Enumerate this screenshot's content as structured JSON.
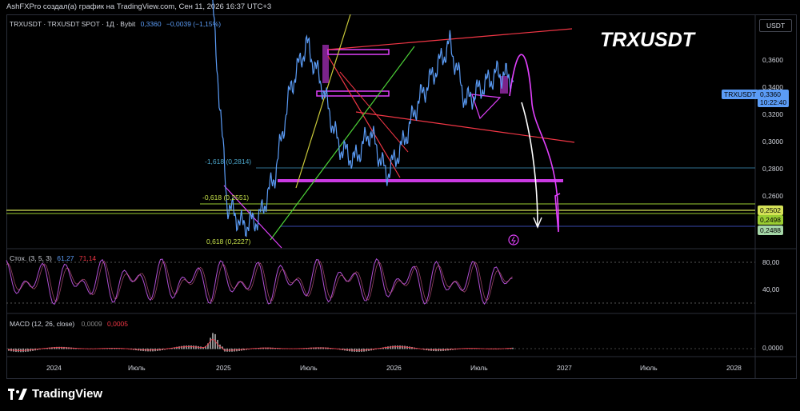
{
  "header": {
    "attribution": "AshFXPro создал(а) график на TradingView.com, Сен 11, 2026 16:37 UTC+3"
  },
  "legend": {
    "symbol": "TRXUSDT · TRXUSDT SPOT · 1Д · Bybit",
    "price": "0,3360",
    "change": "−0,0039 (−1,15%)"
  },
  "watermark_title": "TRXUSDT",
  "currency_button": "USDT",
  "current_price_tag": {
    "symbol": "TRXUSDT",
    "price": "0,3360",
    "countdown": "10:22:40",
    "color": "#5b9cf6"
  },
  "price_axis_labels": [
    "0,3600",
    "0,3400",
    "0,3200",
    "0,3000",
    "0,2800",
    "0,2600"
  ],
  "level_tags": [
    "0,2502",
    "0,2498",
    "0,2488"
  ],
  "fib_labels": [
    "-1,618 (0,2814)",
    "-0,618 (0,2551)",
    "0,618 (0,2227)"
  ],
  "stoch": {
    "title": "Стох. (3, 5, 3)",
    "k": "61,27",
    "d": "71,14",
    "axis_labels": [
      "80,00",
      "40,00"
    ]
  },
  "macd": {
    "title": "MACD (12, 26, close)",
    "macd": "0,0009",
    "signal": "0,0005",
    "axis_label": "0,0000"
  },
  "time_axis_labels": [
    "2024",
    "Июль",
    "2025",
    "Июль",
    "2026",
    "Июль",
    "2027",
    "Июль",
    "2028"
  ],
  "brand": "TradingView",
  "colors": {
    "price_line": "#5b9cf6",
    "stoch_line": "#b04fd6",
    "macd_hist": "#c8c8c8",
    "macd_signal": "#f23645",
    "trend_red": "#f23645",
    "trend_green": "#4cd137",
    "zone_magenta": "#e040fb"
  },
  "chart_data": {
    "type": "line",
    "x": [
      "2024-12",
      "2025-01",
      "2025-03",
      "2025-05",
      "2025-06",
      "2025-07",
      "2025-08",
      "2025-09",
      "2025-10",
      "2025-11",
      "2025-12",
      "2026-01",
      "2026-02",
      "2026-03",
      "2026-04",
      "2026-05",
      "2026-06",
      "2026-07",
      "2026-08",
      "2026-09"
    ],
    "series": [
      {
        "values": [
          0.4,
          0.25,
          0.235,
          0.24,
          0.27,
          0.33,
          0.36,
          0.33,
          0.29,
          0.28,
          0.3,
          0.27,
          0.29,
          0.32,
          0.34,
          0.36,
          0.32,
          0.33,
          0.34,
          0.336
        ]
      }
    ],
    "ylim": [
      0.22,
      0.38
    ],
    "grid": false
  }
}
